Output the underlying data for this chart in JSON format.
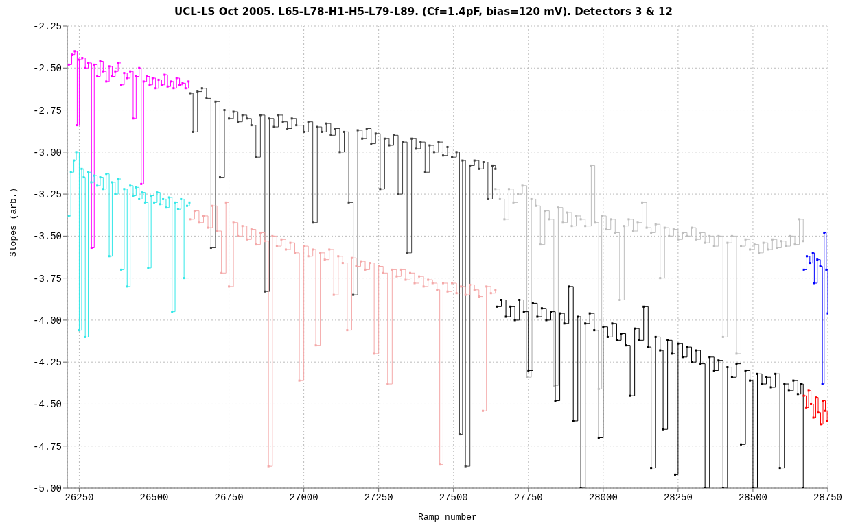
{
  "chart_data": {
    "type": "step",
    "title": "UCL-LS Oct 2005. L65-L78-H1-H5-L79-L89. (Cf=1.4pF, bias=120 mV). Detectors 3 & 12",
    "xlabel": "Ramp number",
    "ylabel": "Slopes (arb.)",
    "xlim": [
      26210,
      28750
    ],
    "xticks": [
      26250,
      26500,
      26750,
      27000,
      27250,
      27500,
      27750,
      28000,
      28250,
      28500,
      28750
    ],
    "ylim": [
      -5,
      -2.25
    ],
    "yticks": [
      {
        "value": -2.25,
        "label": "-2.25"
      },
      {
        "value": -2.5,
        "label": "-2.50"
      },
      {
        "value": -2.75,
        "label": "-2.75"
      },
      {
        "value": -3,
        "label": "-3.00"
      },
      {
        "value": -3.25,
        "label": "-3.25"
      },
      {
        "value": -3.5,
        "label": "-3.50"
      },
      {
        "value": -3.75,
        "label": "-3.75"
      },
      {
        "value": -4,
        "label": "-4.00"
      },
      {
        "value": -4.25,
        "label": "-4.25"
      },
      {
        "value": -4.5,
        "label": "-4.50"
      },
      {
        "value": -4.75,
        "label": "-4.75"
      },
      {
        "value": -5,
        "label": "-5.00"
      }
    ],
    "grid": true,
    "marker": "square",
    "line_style": "solid",
    "series": [
      {
        "color": "#ff00ff",
        "x": [
          26215,
          26225,
          26235,
          26243,
          26250,
          26260,
          26270,
          26280,
          26291,
          26300,
          26310,
          26320,
          26330,
          26340,
          26350,
          26360,
          26370,
          26380,
          26390,
          26400,
          26410,
          26420,
          26430,
          26440,
          26450,
          26457,
          26465,
          26475,
          26485,
          26495,
          26505,
          26515,
          26525,
          26535,
          26545,
          26555,
          26565,
          26575,
          26585,
          26595,
          26605,
          26615
        ],
        "values": [
          -2.48,
          -2.42,
          -2.4,
          -2.84,
          -2.45,
          -2.44,
          -2.5,
          -2.47,
          -3.57,
          -2.48,
          -2.55,
          -2.46,
          -2.52,
          -2.58,
          -2.49,
          -2.55,
          -2.52,
          -2.47,
          -2.6,
          -2.53,
          -2.56,
          -2.52,
          -2.8,
          -2.55,
          -2.5,
          -3.19,
          -2.58,
          -2.55,
          -2.6,
          -2.56,
          -2.62,
          -2.57,
          -2.6,
          -2.54,
          -2.61,
          -2.58,
          -2.62,
          -2.56,
          -2.6,
          -2.59,
          -2.62,
          -2.58
        ]
      },
      {
        "color": "#33e8e8",
        "x": [
          26215,
          26222,
          26232,
          26240,
          26250,
          26258,
          26265,
          26270,
          26280,
          26290,
          26300,
          26310,
          26320,
          26330,
          26340,
          26350,
          26360,
          26370,
          26380,
          26390,
          26400,
          26410,
          26420,
          26430,
          26440,
          26450,
          26460,
          26470,
          26480,
          26490,
          26500,
          26510,
          26520,
          26530,
          26540,
          26550,
          26560,
          26570,
          26580,
          26590,
          26600,
          26610,
          26618
        ],
        "values": [
          -3.38,
          -3.12,
          -3.05,
          -3.0,
          -4.06,
          -3.1,
          -3.15,
          -4.1,
          -3.12,
          -3.18,
          -3.14,
          -3.2,
          -3.15,
          -3.22,
          -3.13,
          -3.62,
          -3.18,
          -3.25,
          -3.16,
          -3.7,
          -3.22,
          -3.8,
          -3.2,
          -3.26,
          -3.21,
          -3.28,
          -3.24,
          -3.3,
          -3.69,
          -3.26,
          -3.3,
          -3.24,
          -3.31,
          -3.28,
          -3.33,
          -3.27,
          -3.95,
          -3.3,
          -3.34,
          -3.28,
          -3.75,
          -3.32,
          -3.3
        ]
      },
      {
        "color": "#404040",
        "x": [
          26620,
          26630,
          26645,
          26660,
          26675,
          26690,
          26705,
          26720,
          26735,
          26750,
          26765,
          26780,
          26795,
          26810,
          26825,
          26840,
          26855,
          26870,
          26885,
          26900,
          26915,
          26930,
          26945,
          26960,
          26975,
          27000,
          27015,
          27030,
          27045,
          27060,
          27075,
          27090,
          27105,
          27120,
          27135,
          27150,
          27165,
          27180,
          27195,
          27210,
          27225,
          27240,
          27255,
          27270,
          27285,
          27300,
          27315,
          27330,
          27345,
          27360,
          27375,
          27390,
          27405,
          27420,
          27435,
          27450,
          27465,
          27480,
          27495,
          27510,
          27520,
          27530,
          27540,
          27555,
          27570,
          27585,
          27600,
          27615,
          27630,
          27640
        ],
        "values": [
          -2.65,
          -2.88,
          -2.64,
          -2.62,
          -2.68,
          -3.57,
          -2.7,
          -3.15,
          -2.75,
          -2.8,
          -2.76,
          -2.82,
          -2.78,
          -2.8,
          -2.84,
          -3.03,
          -2.78,
          -3.83,
          -2.8,
          -2.85,
          -2.78,
          -2.82,
          -2.86,
          -2.8,
          -2.84,
          -2.88,
          -2.82,
          -3.42,
          -2.85,
          -2.88,
          -2.83,
          -2.9,
          -2.86,
          -3.0,
          -2.88,
          -3.3,
          -3.85,
          -2.87,
          -2.92,
          -2.86,
          -2.95,
          -2.89,
          -3.22,
          -2.92,
          -2.96,
          -2.9,
          -3.25,
          -2.94,
          -3.6,
          -2.92,
          -2.98,
          -2.94,
          -3.12,
          -2.96,
          -3.0,
          -2.94,
          -3.02,
          -2.97,
          -3.03,
          -3.0,
          -4.68,
          -3.05,
          -4.87,
          -3.08,
          -3.05,
          -3.1,
          -3.06,
          -3.28,
          -3.08,
          -3.1
        ]
      },
      {
        "color": "#f4a8a8",
        "x": [
          26620,
          26635,
          26650,
          26665,
          26680,
          26695,
          26710,
          26725,
          26740,
          26750,
          26765,
          26780,
          26795,
          26810,
          26825,
          26840,
          26855,
          26870,
          26882,
          26895,
          26910,
          26925,
          26940,
          26955,
          26970,
          26985,
          27000,
          27015,
          27030,
          27040,
          27055,
          27070,
          27085,
          27100,
          27115,
          27130,
          27145,
          27160,
          27175,
          27190,
          27205,
          27220,
          27235,
          27250,
          27265,
          27280,
          27295,
          27310,
          27325,
          27340,
          27355,
          27370,
          27385,
          27400,
          27415,
          27430,
          27445,
          27454,
          27465,
          27480,
          27495,
          27510,
          27525,
          27540,
          27555,
          27570,
          27585,
          27598,
          27610,
          27625,
          27640
        ],
        "values": [
          -3.4,
          -3.35,
          -3.42,
          -3.38,
          -3.45,
          -3.32,
          -3.47,
          -3.72,
          -3.3,
          -3.8,
          -3.42,
          -3.5,
          -3.44,
          -3.52,
          -3.46,
          -3.55,
          -3.48,
          -3.53,
          -4.87,
          -3.5,
          -3.56,
          -3.52,
          -3.58,
          -3.54,
          -3.6,
          -4.36,
          -3.56,
          -3.62,
          -3.58,
          -4.15,
          -3.6,
          -3.64,
          -3.58,
          -3.85,
          -3.62,
          -3.66,
          -4.06,
          -3.63,
          -3.68,
          -3.65,
          -3.7,
          -3.66,
          -4.2,
          -3.68,
          -3.72,
          -4.38,
          -3.7,
          -3.74,
          -3.7,
          -3.76,
          -3.72,
          -3.78,
          -3.74,
          -3.8,
          -3.76,
          -3.78,
          -3.82,
          -4.86,
          -3.78,
          -3.83,
          -3.78,
          -3.84,
          -3.8,
          -3.85,
          -3.79,
          -3.82,
          -3.86,
          -4.54,
          -3.8,
          -3.84,
          -3.82
        ]
      },
      {
        "color": "#bebebe",
        "x": [
          27640,
          27655,
          27670,
          27685,
          27700,
          27715,
          27730,
          27745,
          27760,
          27775,
          27790,
          27805,
          27820,
          27835,
          27850,
          27865,
          27880,
          27895,
          27910,
          27925,
          27940,
          27960,
          27972,
          27985,
          27995,
          28010,
          28025,
          28040,
          28055,
          28070,
          28085,
          28100,
          28115,
          28130,
          28145,
          28160,
          28175,
          28190,
          28205,
          28220,
          28235,
          28250,
          28265,
          28280,
          28295,
          28310,
          28325,
          28340,
          28355,
          28370,
          28385,
          28400,
          28415,
          28430,
          28445,
          28460,
          28475,
          28490,
          28505,
          28520,
          28535,
          28550,
          28565,
          28580,
          28595,
          28610,
          28625,
          28640,
          28655,
          28668
        ],
        "values": [
          -3.22,
          -3.28,
          -3.4,
          -3.22,
          -3.3,
          -3.25,
          -3.2,
          -4.34,
          -3.28,
          -3.32,
          -3.55,
          -3.35,
          -3.4,
          -4.39,
          -3.33,
          -3.42,
          -3.36,
          -3.44,
          -3.38,
          -3.4,
          -3.44,
          -3.08,
          -3.42,
          -4.41,
          -3.38,
          -3.46,
          -3.4,
          -3.48,
          -3.88,
          -3.44,
          -3.4,
          -3.47,
          -3.42,
          -3.3,
          -3.45,
          -3.48,
          -3.43,
          -3.75,
          -3.45,
          -3.5,
          -3.46,
          -3.52,
          -3.48,
          -3.5,
          -3.45,
          -3.52,
          -3.48,
          -3.54,
          -3.5,
          -3.56,
          -3.5,
          -4.1,
          -3.54,
          -3.5,
          -4.2,
          -3.56,
          -3.52,
          -3.58,
          -3.55,
          -3.6,
          -3.54,
          -3.58,
          -3.52,
          -3.57,
          -3.53,
          -3.56,
          -3.5,
          -3.55,
          -3.4,
          -3.53
        ]
      },
      {
        "color": "#000000",
        "x": [
          27645,
          27660,
          27675,
          27690,
          27705,
          27720,
          27735,
          27750,
          27765,
          27780,
          27795,
          27810,
          27825,
          27840,
          27855,
          27870,
          27885,
          27900,
          27915,
          27925,
          27940,
          27955,
          27970,
          27985,
          28000,
          28015,
          28030,
          28045,
          28060,
          28075,
          28090,
          28105,
          28120,
          28135,
          28150,
          28160,
          28175,
          28190,
          28200,
          28215,
          28230,
          28240,
          28250,
          28265,
          28280,
          28295,
          28310,
          28325,
          28340,
          28355,
          28370,
          28385,
          28400,
          28415,
          28430,
          28445,
          28460,
          28475,
          28490,
          28500,
          28515,
          28530,
          28545,
          28560,
          28575,
          28590,
          28605,
          28620,
          28635,
          28650,
          28660,
          28668
        ],
        "values": [
          -3.92,
          -3.88,
          -3.98,
          -3.92,
          -4.0,
          -3.88,
          -3.95,
          -4.3,
          -3.9,
          -3.98,
          -3.93,
          -4.0,
          -3.95,
          -4.48,
          -3.96,
          -4.02,
          -3.8,
          -4.6,
          -3.98,
          -5.0,
          -4.02,
          -3.96,
          -4.06,
          -4.7,
          -4.04,
          -4.1,
          -4.02,
          -4.12,
          -4.08,
          -4.15,
          -4.45,
          -4.05,
          -4.12,
          -3.92,
          -4.16,
          -4.88,
          -4.1,
          -4.18,
          -4.65,
          -4.12,
          -4.2,
          -4.92,
          -4.14,
          -4.22,
          -4.16,
          -4.25,
          -4.18,
          -4.26,
          -5.0,
          -4.22,
          -4.3,
          -4.24,
          -5.0,
          -4.28,
          -4.34,
          -4.26,
          -4.74,
          -4.3,
          -4.36,
          -5.0,
          -4.32,
          -4.38,
          -4.34,
          -4.4,
          -4.32,
          -4.88,
          -4.38,
          -4.42,
          -4.36,
          -4.44,
          -4.38,
          -5.0
        ]
      },
      {
        "color": "#0000ff",
        "x": [
          28670,
          28680,
          28690,
          28700,
          28705,
          28715,
          28725,
          28732,
          28738,
          28745,
          28750
        ],
        "values": [
          -3.7,
          -3.62,
          -3.66,
          -3.6,
          -3.78,
          -3.64,
          -3.68,
          -4.38,
          -3.48,
          -3.7,
          -3.96
        ]
      },
      {
        "color": "#ff0000",
        "x": [
          28670,
          28678,
          28686,
          28694,
          28702,
          28710,
          28718,
          28726,
          28734,
          28742,
          28748
        ],
        "values": [
          -4.45,
          -4.52,
          -4.42,
          -4.5,
          -4.58,
          -4.46,
          -4.55,
          -4.62,
          -4.48,
          -4.54,
          -4.6
        ]
      }
    ]
  }
}
